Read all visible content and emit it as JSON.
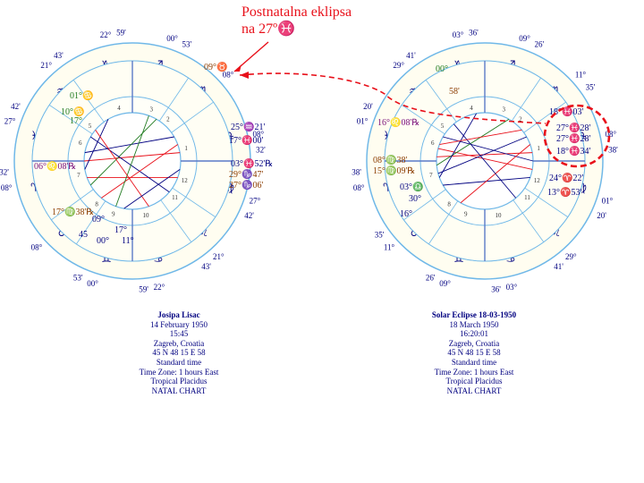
{
  "colors": {
    "fire": "#f9d0d0",
    "earth": "#e8efc5",
    "air": "#fff6c6",
    "water": "#d9eef8",
    "ink": "#000080",
    "red": "#e8101a",
    "green": "#1f7a1f",
    "brown": "#8b3c00",
    "purple": "#7a0f7a",
    "lightblue": "#70b8e8"
  },
  "annotation": {
    "line1": "Postnatalna eklipsa",
    "line2": "na 27º♓"
  },
  "left_chart": {
    "name": "Josipa Lisac",
    "date": "14 February 1950",
    "time": "15:45",
    "place": "Zagreb, Croatia",
    "coords": "45 N 48     15 E 58",
    "time_type": "Standard time",
    "zone": "Time Zone: 1 hours East",
    "system": "Tropical Placidus",
    "kind": "NATAL CHART",
    "cusp_labels": [
      {
        "deg": "22°",
        "min": "59'",
        "sign": "♈"
      },
      {
        "deg": "21°",
        "min": "43'",
        "sign": "♉"
      },
      {
        "deg": "27°",
        "min": "42'",
        "sign": "♊"
      },
      {
        "deg": "08°",
        "min": "32'",
        "sign": "♋"
      },
      {
        "deg": "08°",
        "min": "",
        "sign": "♌"
      },
      {
        "deg": "00°",
        "min": "53'",
        "sign": "♍"
      },
      {
        "deg": "22°",
        "min": "59'",
        "sign": "♎"
      },
      {
        "deg": "21°",
        "min": "43'",
        "sign": "♏"
      },
      {
        "deg": "27°",
        "min": "42'",
        "sign": "♐"
      },
      {
        "deg": "08°",
        "min": "32'",
        "sign": "♑"
      },
      {
        "deg": "08°",
        "min": "",
        "sign": "♒"
      },
      {
        "deg": "00°",
        "min": "53'",
        "sign": "♓"
      }
    ],
    "planets": [
      {
        "txt": "09°♉"
      },
      {
        "txt": "25°♒21'"
      },
      {
        "txt": "17°♓00'"
      },
      {
        "txt": "03°♓52'℞"
      },
      {
        "txt": "29°♑47'"
      },
      {
        "txt": "27°♑06'"
      },
      {
        "txt": "01°♋"
      },
      {
        "txt": "10°♋"
      },
      {
        "txt": "17°"
      },
      {
        "txt": "06°♌08'℞"
      },
      {
        "txt": "17°♍38'℞"
      },
      {
        "txt": "09°"
      },
      {
        "txt": "00°"
      },
      {
        "txt": "17°"
      },
      {
        "txt": "45"
      },
      {
        "txt": "11°"
      }
    ]
  },
  "right_chart": {
    "name": "Solar Eclipse 18-03-1950",
    "date": "18 March 1950",
    "time": "16:20:01",
    "place": "Zagreb, Croatia",
    "coords": "45 N 48     15 E 58",
    "time_type": "Standard time",
    "zone": "Time Zone: 1 hours East",
    "system": "Tropical Placidus",
    "kind": "NATAL CHART",
    "cusp_labels": [
      {
        "deg": "03°",
        "min": "36'",
        "sign": "♈"
      },
      {
        "deg": "29°",
        "min": "41'",
        "sign": "♉"
      },
      {
        "deg": "01°",
        "min": "20'",
        "sign": "♊"
      },
      {
        "deg": "08°",
        "min": "38'",
        "sign": "♋"
      },
      {
        "deg": "11°",
        "min": "35'",
        "sign": "♌"
      },
      {
        "deg": "09°",
        "min": "26'",
        "sign": "♍"
      },
      {
        "deg": "03°",
        "min": "36'",
        "sign": "♎"
      },
      {
        "deg": "29°",
        "min": "41'",
        "sign": "♏"
      },
      {
        "deg": "01°",
        "min": "20'",
        "sign": "♐"
      },
      {
        "deg": "08°",
        "min": "38'",
        "sign": "♑"
      },
      {
        "deg": "11°",
        "min": "35'",
        "sign": "♒"
      },
      {
        "deg": "09°",
        "min": "26'",
        "sign": "♓"
      }
    ],
    "planets": [
      {
        "txt": "00°"
      },
      {
        "txt": "58'"
      },
      {
        "txt": "16°♌08'℞"
      },
      {
        "txt": "08°♍38'"
      },
      {
        "txt": "15°♍09'℞"
      },
      {
        "txt": "03°♎"
      },
      {
        "txt": "30°"
      },
      {
        "txt": "16°"
      },
      {
        "txt": "18°♓03'"
      },
      {
        "txt": "27°♓28'"
      },
      {
        "txt": "27°♓28'"
      },
      {
        "txt": "18°♓34'"
      },
      {
        "txt": "24°♈22'"
      },
      {
        "txt": "13°♈53'"
      }
    ]
  }
}
